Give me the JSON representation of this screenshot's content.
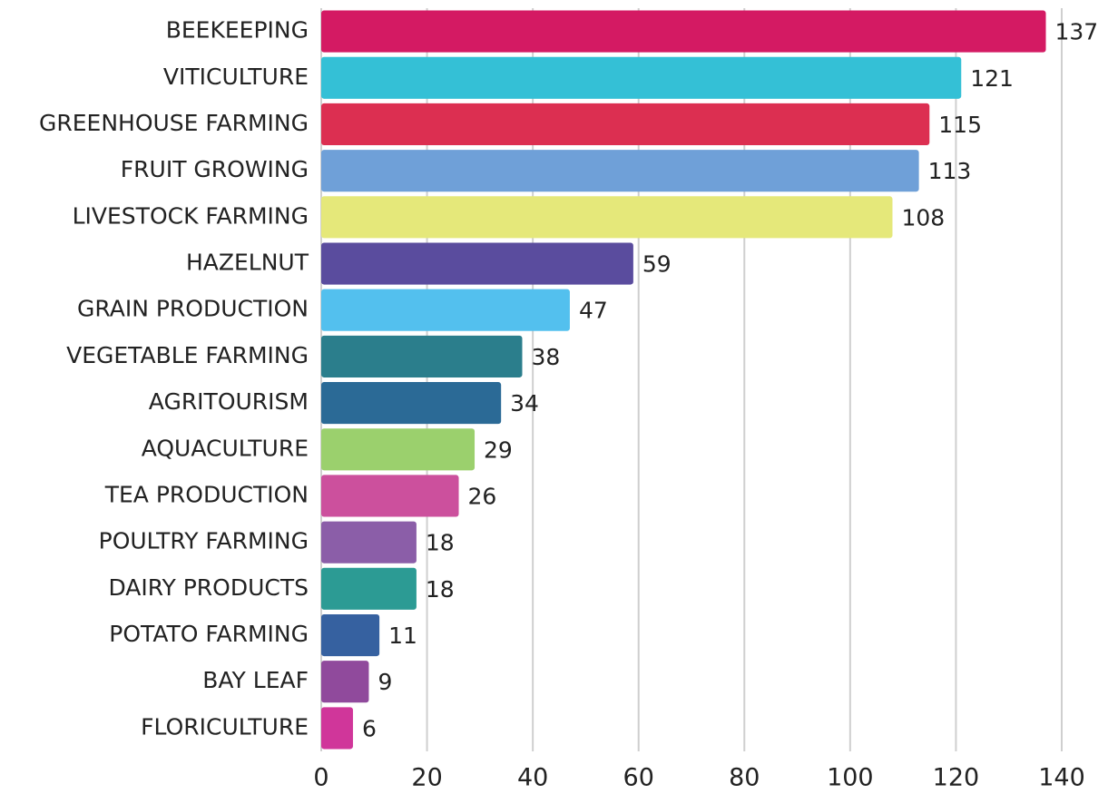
{
  "chart_data": {
    "type": "barh",
    "categories": [
      "BEEKEEPING",
      "VITICULTURE",
      "GREENHOUSE FARMING",
      "FRUIT GROWING",
      "LIVESTOCK FARMING",
      "HAZELNUT",
      "GRAIN PRODUCTION",
      "VEGETABLE FARMING",
      "AGRITOURISM",
      "AQUACULTURE",
      "TEA PRODUCTION",
      "POULTRY FARMING",
      "DAIRY PRODUCTS",
      "POTATO FARMING",
      "BAY LEAF",
      "FLORICULTURE"
    ],
    "values": [
      137,
      121,
      115,
      113,
      108,
      59,
      47,
      38,
      34,
      29,
      26,
      18,
      18,
      11,
      9,
      6
    ],
    "colors": [
      "#d41a63",
      "#34c0d6",
      "#dc2f51",
      "#6fa0d8",
      "#e5e87a",
      "#5a4c9e",
      "#53c0ee",
      "#2b7e8c",
      "#2b6a96",
      "#9bd06d",
      "#cc509d",
      "#8b5ea8",
      "#2c9b94",
      "#3661a0",
      "#904a9c",
      "#d0369a"
    ],
    "xlim": [
      0,
      140
    ],
    "xticks": [
      0,
      20,
      40,
      60,
      80,
      100,
      120,
      140
    ],
    "grid": true
  }
}
